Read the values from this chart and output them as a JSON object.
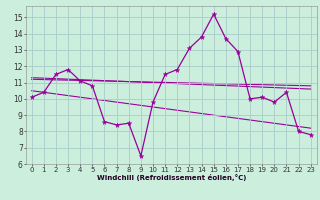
{
  "xlabel": "Windchill (Refroidissement éolien,°C)",
  "background_color": "#cceedd",
  "grid_color": "#aacccc",
  "line_color": "#990099",
  "xlim": [
    -0.5,
    23.5
  ],
  "ylim": [
    6,
    15.7
  ],
  "yticks": [
    6,
    7,
    8,
    9,
    10,
    11,
    12,
    13,
    14,
    15
  ],
  "xticks": [
    0,
    1,
    2,
    3,
    4,
    5,
    6,
    7,
    8,
    9,
    10,
    11,
    12,
    13,
    14,
    15,
    16,
    17,
    18,
    19,
    20,
    21,
    22,
    23
  ],
  "series_main": {
    "x": [
      0,
      1,
      2,
      3,
      4,
      5,
      6,
      7,
      8,
      9,
      10,
      11,
      12,
      13,
      14,
      15,
      16,
      17,
      18,
      19,
      20,
      21,
      22,
      23
    ],
    "y": [
      10.1,
      10.4,
      11.5,
      11.8,
      11.1,
      10.8,
      8.6,
      8.4,
      8.5,
      6.5,
      9.8,
      11.5,
      11.8,
      13.1,
      13.8,
      15.2,
      13.7,
      12.9,
      10.0,
      10.1,
      9.8,
      10.4,
      8.0,
      7.8
    ]
  },
  "trend_lines": [
    {
      "x": [
        0,
        23
      ],
      "y": [
        11.2,
        10.8
      ]
    },
    {
      "x": [
        0,
        23
      ],
      "y": [
        11.3,
        10.6
      ]
    },
    {
      "x": [
        0,
        23
      ],
      "y": [
        10.5,
        8.2
      ]
    }
  ],
  "tick_labelsize": 5,
  "xlabel_fontsize": 5,
  "xlabel_color": "#220022"
}
